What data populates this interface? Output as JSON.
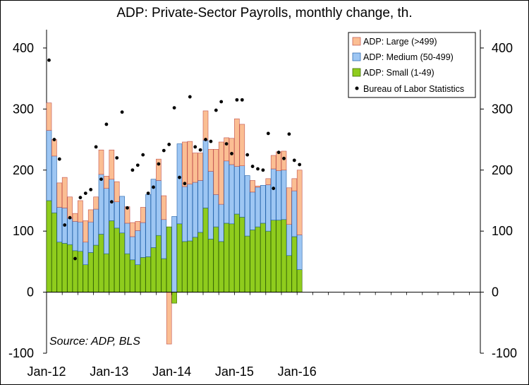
{
  "chart_data": {
    "type": "bar",
    "title": "ADP: Private-Sector Payrolls, monthly change, th.",
    "source": "Source: ADP, BLS",
    "ylim": [
      -100,
      430
    ],
    "yticks": [
      -100,
      0,
      100,
      200,
      300,
      400
    ],
    "xticks": [
      {
        "label": "Jan-12",
        "index": 0
      },
      {
        "label": "Jan-13",
        "index": 12
      },
      {
        "label": "Jan-14",
        "index": 24
      },
      {
        "label": "Jan-15",
        "index": 36
      },
      {
        "label": "Jan-16",
        "index": 48
      }
    ],
    "stacked": true,
    "series": [
      {
        "name": "ADP: Small (1-49)",
        "color": "#8fcc1d",
        "values": [
          150,
          130,
          82,
          80,
          78,
          68,
          67,
          45,
          65,
          77,
          95,
          63,
          117,
          105,
          97,
          63,
          53,
          45,
          57,
          58,
          73,
          93,
          55,
          107,
          -18,
          112,
          83,
          84,
          90,
          98,
          138,
          87,
          107,
          83,
          113,
          112,
          128,
          123,
          92,
          102,
          107,
          113,
          100,
          118,
          118,
          119,
          60,
          91,
          37
        ]
      },
      {
        "name": "ADP: Medium (50-499)",
        "color": "#9dc6f3",
        "values": [
          115,
          93,
          57,
          58,
          43,
          48,
          48,
          37,
          50,
          59,
          98,
          107,
          68,
          43,
          60,
          50,
          38,
          56,
          57,
          102,
          112,
          90,
          64,
          0,
          124,
          131,
          90,
          93,
          90,
          85,
          111,
          111,
          53,
          61,
          102,
          97,
          78,
          84,
          99,
          62,
          65,
          62,
          76,
          84,
          81,
          81,
          51,
          75,
          57
        ]
      },
      {
        "name": "ADP: Large (>499)",
        "color": "#fbbe93",
        "values": [
          45,
          27,
          40,
          50,
          35,
          13,
          35,
          35,
          20,
          20,
          40,
          20,
          48,
          33,
          0,
          27,
          23,
          15,
          25,
          0,
          0,
          35,
          39,
          -85,
          0,
          0,
          73,
          70,
          48,
          45,
          48,
          36,
          74,
          102,
          38,
          43,
          78,
          68,
          0,
          19,
          2,
          0,
          10,
          22,
          31,
          31,
          60,
          20,
          106
        ]
      },
      {
        "name": "Bureau of Labor Statistics",
        "color": "#000000",
        "type": "scatter",
        "values": [
          380,
          250,
          218,
          110,
          122,
          55,
          155,
          162,
          168,
          238,
          185,
          275,
          148,
          220,
          295,
          138,
          200,
          208,
          225,
          162,
          172,
          210,
          232,
          242,
          302,
          188,
          178,
          320,
          238,
          233,
          250,
          247,
          298,
          312,
          243,
          227,
          315,
          315,
          225,
          206,
          202,
          200,
          260,
          170,
          229,
          219,
          259,
          216,
          209
        ]
      }
    ],
    "legend": "top-right"
  }
}
